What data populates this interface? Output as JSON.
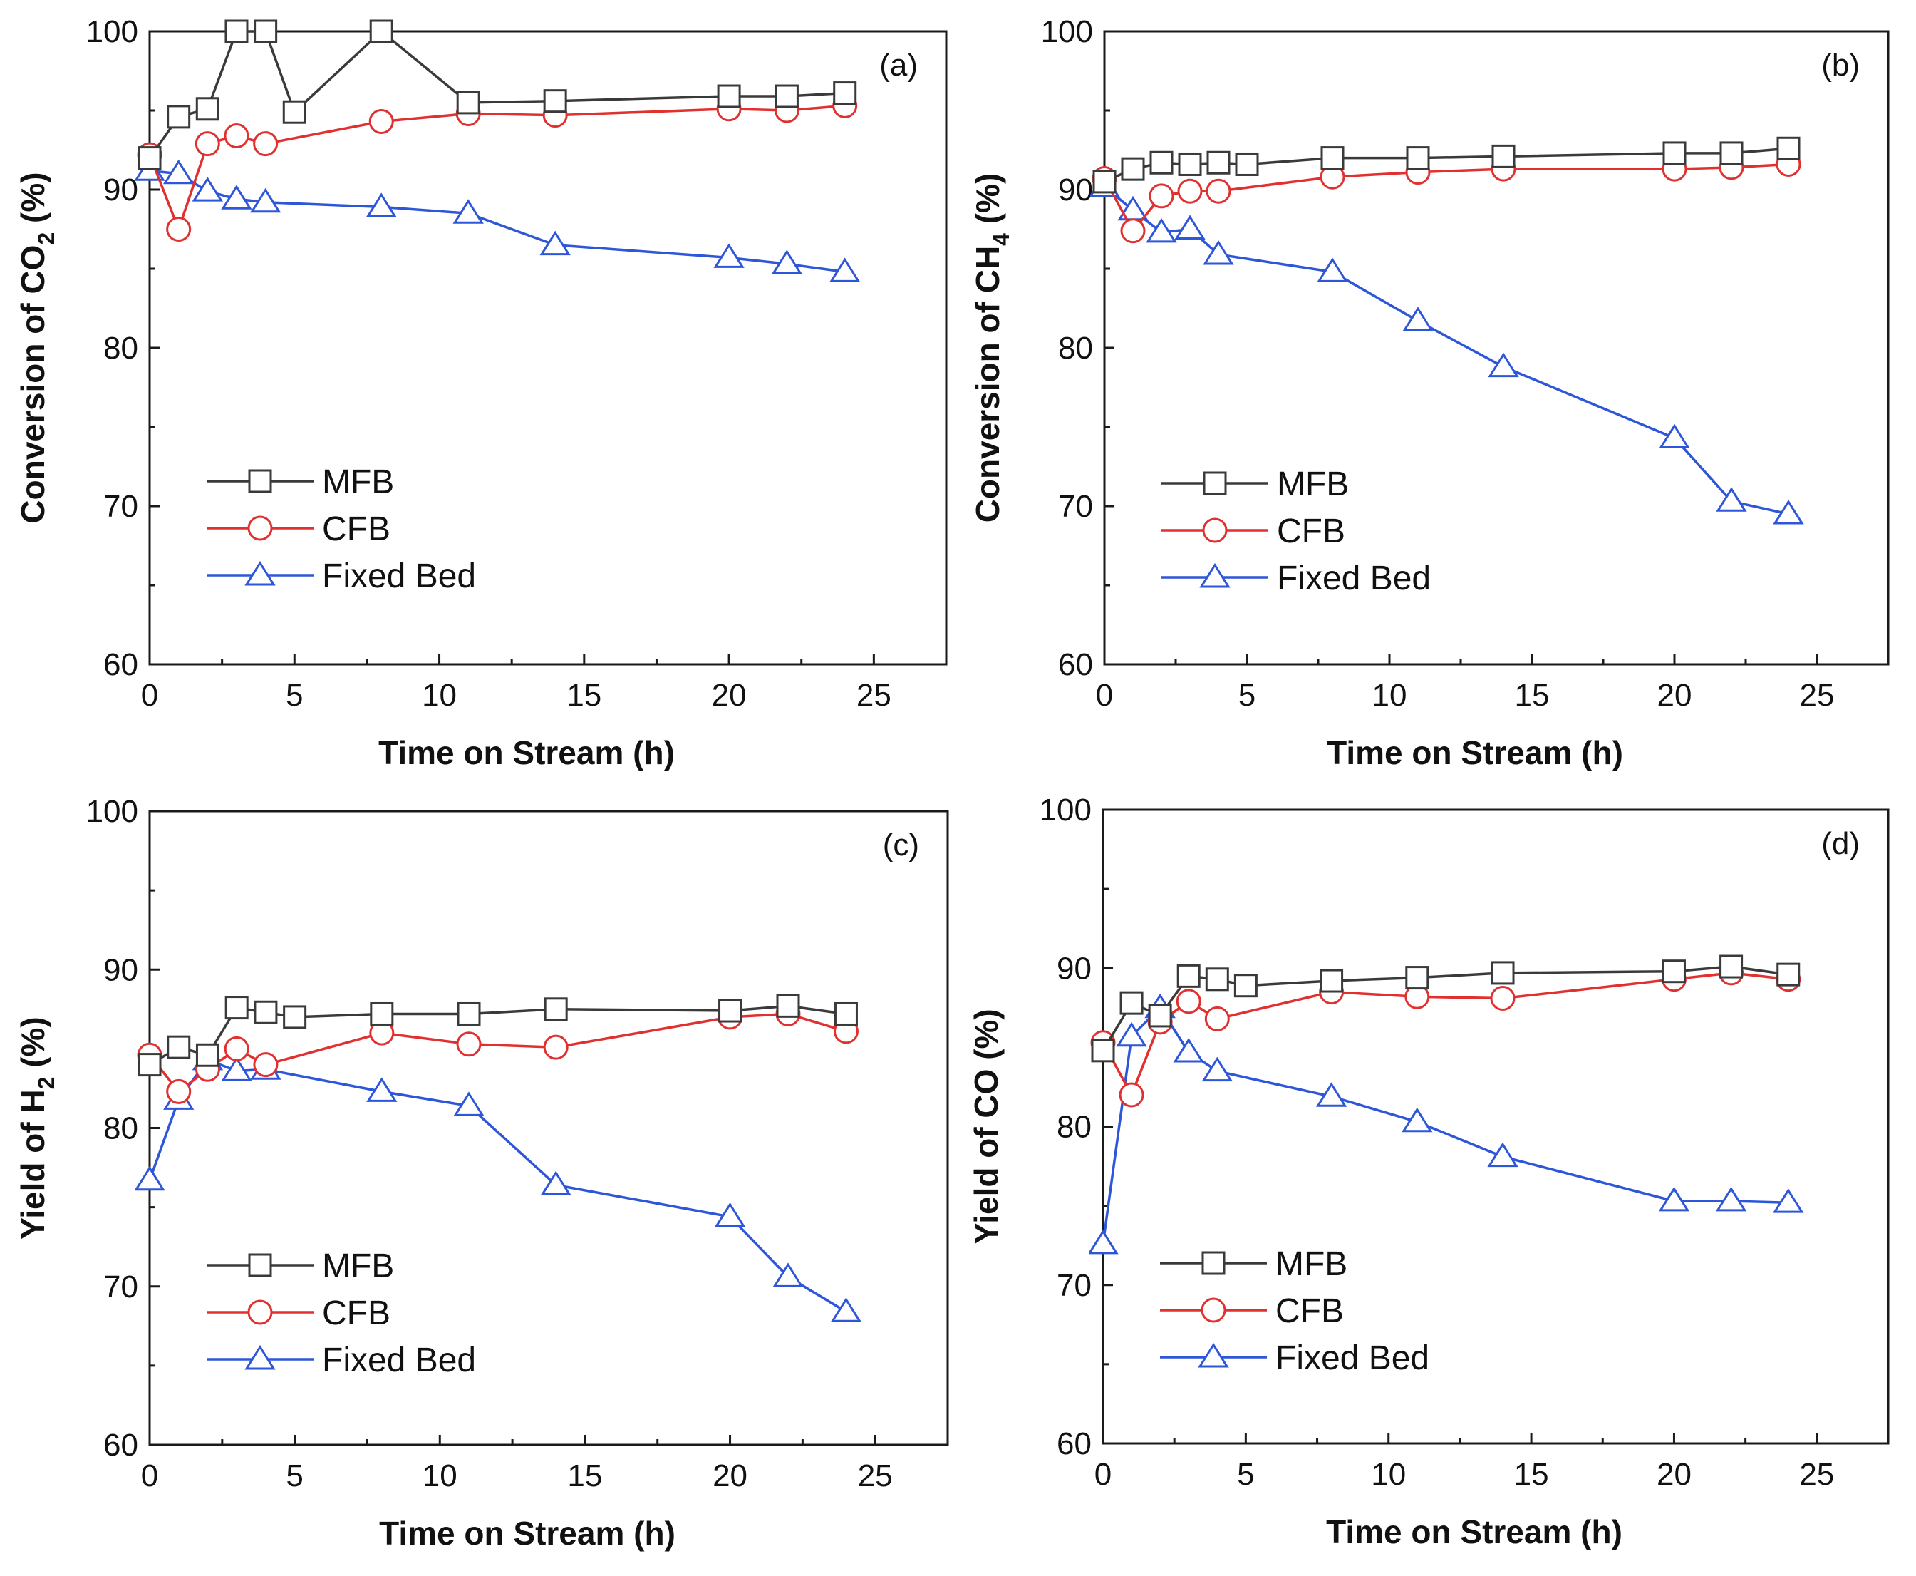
{
  "chart_data": [
    {
      "panel": "(a)",
      "type": "line",
      "xlabel": "Time on Stream (h)",
      "ylabel": "Conversion of CO",
      "ylabel_sub": "2",
      "ylabel_suffix": " (%)",
      "xlim": [
        0,
        27.5
      ],
      "ylim": [
        60,
        100
      ],
      "xticks": [
        0,
        5,
        10,
        15,
        20,
        25
      ],
      "yticks": [
        60,
        70,
        80,
        90,
        100
      ],
      "legend": "upper-left-middle",
      "series": [
        {
          "name": "MFB",
          "color": "#3a3a3a",
          "marker": "square",
          "x": [
            0,
            1,
            2,
            3,
            4,
            5,
            8,
            11,
            14,
            20,
            22,
            24
          ],
          "y": [
            92.0,
            94.6,
            95.1,
            100.0,
            100.0,
            94.9,
            100.0,
            95.5,
            95.6,
            95.9,
            95.9,
            96.1
          ]
        },
        {
          "name": "CFB",
          "color": "#e03030",
          "marker": "circle",
          "x": [
            0,
            1,
            2,
            3,
            4,
            8,
            11,
            14,
            20,
            22,
            24
          ],
          "y": [
            92.2,
            87.5,
            92.9,
            93.4,
            92.9,
            94.3,
            94.8,
            94.7,
            95.1,
            95.0,
            95.3
          ]
        },
        {
          "name": "Fixed Bed",
          "color": "#2e56d8",
          "marker": "triangle",
          "x": [
            0,
            1,
            2,
            3,
            4,
            8,
            11,
            14,
            20,
            22,
            24
          ],
          "y": [
            91.2,
            91.0,
            89.9,
            89.4,
            89.2,
            88.9,
            88.5,
            86.5,
            85.7,
            85.3,
            84.8
          ]
        }
      ]
    },
    {
      "panel": "(b)",
      "type": "line",
      "xlabel": "Time on Stream (h)",
      "ylabel": "Conversion of CH",
      "ylabel_sub": "4",
      "ylabel_suffix": " (%)",
      "xlim": [
        0,
        27.5
      ],
      "ylim": [
        60,
        100
      ],
      "xticks": [
        0,
        5,
        10,
        15,
        20,
        25
      ],
      "yticks": [
        60,
        70,
        80,
        90,
        100
      ],
      "legend": "upper-left-middle",
      "series": [
        {
          "name": "MFB",
          "color": "#3a3a3a",
          "marker": "square",
          "x": [
            0,
            1,
            2,
            3,
            4,
            5,
            8,
            11,
            14,
            20,
            22,
            24
          ],
          "y": [
            90.5,
            91.3,
            91.7,
            91.6,
            91.7,
            91.6,
            92.0,
            92.0,
            92.1,
            92.3,
            92.3,
            92.6
          ]
        },
        {
          "name": "CFB",
          "color": "#e03030",
          "marker": "circle",
          "x": [
            0,
            1,
            2,
            3,
            4,
            8,
            11,
            14,
            20,
            22,
            24
          ],
          "y": [
            90.7,
            87.4,
            89.6,
            89.9,
            89.9,
            90.8,
            91.1,
            91.3,
            91.3,
            91.4,
            91.6
          ]
        },
        {
          "name": "Fixed Bed",
          "color": "#2e56d8",
          "marker": "triangle",
          "x": [
            0,
            1,
            2,
            3,
            4,
            8,
            11,
            14,
            20,
            22,
            24
          ],
          "y": [
            90.2,
            88.7,
            87.3,
            87.5,
            85.9,
            84.8,
            81.7,
            78.8,
            74.3,
            70.3,
            69.5
          ]
        }
      ]
    },
    {
      "panel": "(c)",
      "type": "line",
      "xlabel": "Time on Stream (h)",
      "ylabel": "Yield of H",
      "ylabel_sub": "2",
      "ylabel_suffix": " (%)",
      "xlim": [
        0,
        27.5
      ],
      "ylim": [
        60,
        100
      ],
      "xticks": [
        0,
        5,
        10,
        15,
        20,
        25
      ],
      "yticks": [
        60,
        70,
        80,
        90,
        100
      ],
      "legend": "lower-left-middle",
      "series": [
        {
          "name": "MFB",
          "color": "#3a3a3a",
          "marker": "square",
          "x": [
            0,
            1,
            2,
            3,
            4,
            5,
            8,
            11,
            14,
            20,
            22,
            24
          ],
          "y": [
            84.0,
            85.1,
            84.6,
            87.6,
            87.3,
            87.0,
            87.2,
            87.2,
            87.5,
            87.4,
            87.7,
            87.2
          ]
        },
        {
          "name": "CFB",
          "color": "#e03030",
          "marker": "circle",
          "x": [
            0,
            1,
            2,
            3,
            4,
            8,
            11,
            14,
            20,
            22,
            24
          ],
          "y": [
            84.6,
            82.3,
            83.7,
            85.0,
            84.0,
            86.0,
            85.3,
            85.1,
            87.0,
            87.2,
            86.1
          ]
        },
        {
          "name": "Fixed Bed",
          "color": "#2e56d8",
          "marker": "triangle",
          "x": [
            0,
            1,
            2,
            3,
            4,
            8,
            11,
            14,
            20,
            22,
            24
          ],
          "y": [
            76.7,
            81.8,
            84.3,
            83.6,
            83.7,
            82.3,
            81.4,
            76.4,
            74.4,
            70.6,
            68.4
          ]
        }
      ]
    },
    {
      "panel": "(d)",
      "type": "line",
      "xlabel": "Time on Stream (h)",
      "ylabel": "Yield of CO",
      "ylabel_sub": "",
      "ylabel_suffix": " (%)",
      "xlim": [
        0,
        27.5
      ],
      "ylim": [
        60,
        100
      ],
      "xticks": [
        0,
        5,
        10,
        15,
        20,
        25
      ],
      "yticks": [
        60,
        70,
        80,
        90,
        100
      ],
      "legend": "lower-left-middle",
      "series": [
        {
          "name": "MFB",
          "color": "#3a3a3a",
          "marker": "square",
          "x": [
            0,
            1,
            2,
            3,
            4,
            5,
            8,
            11,
            14,
            20,
            22,
            24
          ],
          "y": [
            84.8,
            87.8,
            87.0,
            89.5,
            89.3,
            88.9,
            89.2,
            89.4,
            89.7,
            89.8,
            90.1,
            89.6
          ]
        },
        {
          "name": "CFB",
          "color": "#e03030",
          "marker": "circle",
          "x": [
            0,
            1,
            2,
            3,
            4,
            8,
            11,
            14,
            20,
            22,
            24
          ],
          "y": [
            85.3,
            82.0,
            86.6,
            87.9,
            86.8,
            88.5,
            88.2,
            88.1,
            89.3,
            89.7,
            89.3
          ]
        },
        {
          "name": "Fixed Bed",
          "color": "#2e56d8",
          "marker": "triangle",
          "x": [
            0,
            1,
            2,
            3,
            4,
            8,
            11,
            14,
            20,
            22,
            24
          ],
          "y": [
            72.6,
            85.7,
            87.5,
            84.7,
            83.5,
            81.9,
            80.3,
            78.1,
            75.3,
            75.3,
            75.2
          ]
        }
      ]
    }
  ]
}
